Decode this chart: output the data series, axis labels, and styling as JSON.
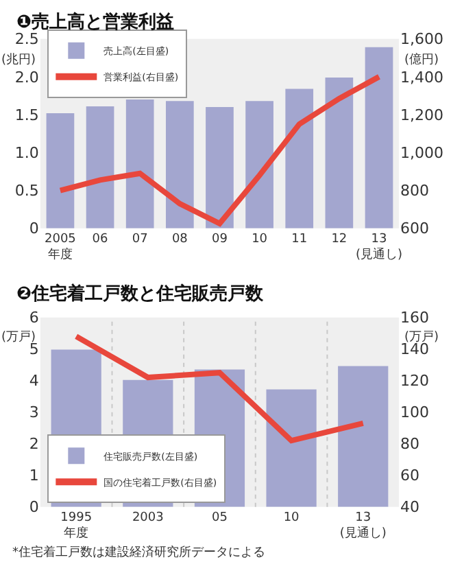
{
  "chart_data": [
    {
      "type": "bar",
      "title": "❶売上高と営業利益",
      "ylabel": "(兆円)",
      "y2label": "(億円)",
      "categories": [
        "2005\n年度",
        "06",
        "07",
        "08",
        "09",
        "10",
        "11",
        "12",
        "13\n(見通し)"
      ],
      "series": [
        {
          "name": "売上高(左目盛)",
          "color": "#a3a6cf",
          "values": [
            1.52,
            1.61,
            1.7,
            1.68,
            1.6,
            1.68,
            1.84,
            1.99,
            2.39
          ]
        },
        {
          "name": "営業利益(右目盛)",
          "type": "line",
          "axis": "y2",
          "color": "#e8473c",
          "values": [
            800,
            855,
            890,
            730,
            625,
            880,
            1150,
            1285,
            1400
          ]
        }
      ],
      "ylim": [
        0,
        2.5
      ],
      "yticks": [
        {
          "value": 0,
          "label": "0"
        },
        {
          "value": 0.5,
          "label": "0.5"
        },
        {
          "value": 1,
          "label": "1.0"
        },
        {
          "value": 1.5,
          "label": "1.5"
        },
        {
          "value": 2,
          "label": "2.0"
        },
        {
          "value": 2.5,
          "label": "2.5"
        }
      ],
      "y2lim": [
        600,
        1600
      ],
      "y2ticks": [
        {
          "value": 600,
          "label": "600"
        },
        {
          "value": 800,
          "label": "800"
        },
        {
          "value": 1000,
          "label": "1,000"
        },
        {
          "value": 1200,
          "label": "1,200"
        },
        {
          "value": 1400,
          "label": "1,400"
        },
        {
          "value": 1600,
          "label": "1,600"
        }
      ],
      "legend": "top left",
      "grid": false,
      "marker": "none"
    },
    {
      "type": "bar",
      "title": "❷住宅着工戸数と住宅販売戸数",
      "ylabel": "(万戸)",
      "y2label": "(万戸)",
      "categories": [
        "1995\n年度",
        "2003",
        "05",
        "10",
        "13\n(見通し)"
      ],
      "series": [
        {
          "name": "住宅販売戸数(左目盛)",
          "color": "#a3a6cf",
          "values": [
            4.98,
            4.02,
            4.35,
            3.72,
            4.46
          ]
        },
        {
          "name": "国の住宅着工戸数(右目盛)",
          "type": "line",
          "axis": "y2",
          "color": "#e8473c",
          "values": [
            148,
            122,
            125,
            82,
            93
          ]
        }
      ],
      "ylim": [
        0,
        6
      ],
      "yticks": [
        0,
        1,
        2,
        3,
        4,
        5,
        6
      ],
      "y2lim": [
        40,
        160
      ],
      "y2ticks": [
        40,
        60,
        80,
        100,
        120,
        140,
        160
      ],
      "legend": "bottom left",
      "grid": "x",
      "marker": "none",
      "annotations": [
        "*住宅着工戸数は建設経済研究所データによる"
      ]
    }
  ]
}
